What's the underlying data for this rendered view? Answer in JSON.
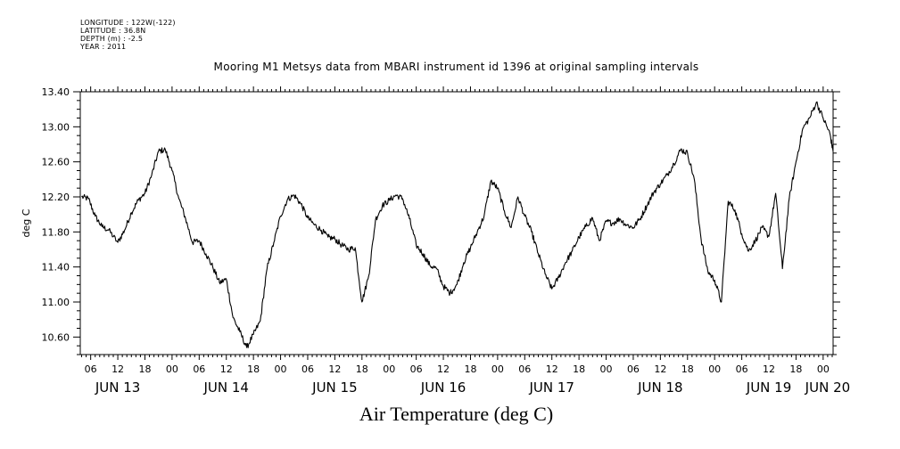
{
  "header": {
    "meta_lines": [
      "LONGITUDE : 122W(-122)",
      "LATITUDE : 36.8N",
      "DEPTH (m) : -2.5",
      "YEAR : 2011"
    ],
    "title": "Mooring M1 Metsys data from MBARI instrument id 1396 at original sampling intervals"
  },
  "footer": {
    "label": "Air Temperature (deg C)"
  },
  "chart_data": {
    "type": "line",
    "title": "Mooring M1 Metsys data from MBARI instrument id 1396 at original sampling intervals",
    "xlabel": "",
    "ylabel": "deg C",
    "x_unit": "hours from JUN 13 00",
    "xlim": [
      3.7,
      170.2
    ],
    "ylim": [
      10.4,
      13.4
    ],
    "y_ticks": [
      10.6,
      11.0,
      11.4,
      11.8,
      12.2,
      12.6,
      13.0,
      13.4
    ],
    "y_tick_labels": [
      "10.60",
      "11.00",
      "11.40",
      "11.80",
      "12.20",
      "12.60",
      "13.00",
      "13.40"
    ],
    "hour_ticks": [
      6,
      12,
      18,
      24,
      30,
      36,
      42,
      48,
      54,
      60,
      66,
      72,
      78,
      84,
      90,
      96,
      102,
      108,
      114,
      120,
      126,
      132,
      138,
      144,
      150,
      156,
      162,
      168
    ],
    "hour_tick_labels": [
      "06",
      "12",
      "18",
      "00",
      "06",
      "12",
      "18",
      "00",
      "06",
      "12",
      "18",
      "00",
      "06",
      "12",
      "18",
      "00",
      "06",
      "12",
      "18",
      "00",
      "06",
      "12",
      "18",
      "00",
      "06",
      "12",
      "18",
      "00"
    ],
    "day_labels": [
      {
        "hour": 12,
        "label": "JUN 13"
      },
      {
        "hour": 36,
        "label": "JUN 14"
      },
      {
        "hour": 60,
        "label": "JUN 15"
      },
      {
        "hour": 84,
        "label": "JUN 16"
      },
      {
        "hour": 108,
        "label": "JUN 17"
      },
      {
        "hour": 132,
        "label": "JUN 18"
      },
      {
        "hour": 156,
        "label": "JUN 19"
      },
      {
        "hour": 169,
        "label": "JUN 20"
      }
    ],
    "grid": false,
    "series": [
      {
        "color": "#000000",
        "x": [
          4.0,
          5.5,
          7.0,
          8.5,
          10.0,
          12.0,
          13.5,
          15.0,
          16.5,
          18.0,
          19.5,
          21.0,
          22.5,
          24.0,
          25.5,
          27.0,
          28.5,
          30.0,
          31.5,
          33.0,
          34.5,
          36.0,
          37.5,
          39.0,
          40.5,
          42.0,
          43.5,
          45.0,
          46.5,
          48.0,
          49.5,
          51.0,
          52.5,
          54.0,
          55.5,
          57.0,
          58.5,
          60.0,
          61.5,
          63.0,
          64.5,
          66.0,
          67.5,
          69.0,
          70.5,
          72.0,
          73.5,
          75.0,
          76.5,
          78.0,
          79.5,
          81.0,
          82.5,
          84.0,
          85.5,
          87.0,
          88.5,
          90.0,
          91.5,
          93.0,
          94.5,
          96.0,
          97.5,
          99.0,
          100.5,
          102.0,
          103.5,
          105.0,
          106.5,
          108.0,
          109.5,
          111.0,
          112.5,
          114.0,
          115.5,
          117.0,
          118.5,
          120.0,
          121.5,
          123.0,
          124.5,
          126.0,
          127.5,
          129.0,
          130.5,
          132.0,
          133.5,
          135.0,
          136.5,
          138.0,
          139.5,
          141.0,
          142.5,
          144.0,
          145.5,
          147.0,
          148.5,
          150.0,
          151.5,
          153.0,
          154.5,
          156.0,
          157.5,
          159.0,
          160.5,
          162.0,
          163.5,
          165.0,
          166.5,
          168.0,
          169.5,
          170.2
        ],
        "y": [
          12.2,
          12.18,
          11.98,
          11.86,
          11.82,
          11.68,
          11.82,
          12.02,
          12.16,
          12.24,
          12.45,
          12.72,
          12.74,
          12.5,
          12.18,
          11.95,
          11.68,
          11.7,
          11.55,
          11.4,
          11.22,
          11.26,
          10.82,
          10.66,
          10.48,
          10.63,
          10.78,
          11.38,
          11.68,
          11.98,
          12.17,
          12.22,
          12.12,
          11.96,
          11.88,
          11.82,
          11.74,
          11.72,
          11.65,
          11.6,
          11.62,
          11.0,
          11.3,
          11.94,
          12.1,
          12.16,
          12.22,
          12.18,
          11.95,
          11.65,
          11.55,
          11.42,
          11.38,
          11.18,
          11.1,
          11.2,
          11.45,
          11.62,
          11.8,
          11.98,
          12.38,
          12.3,
          12.04,
          11.85,
          12.2,
          11.98,
          11.8,
          11.55,
          11.32,
          11.15,
          11.28,
          11.45,
          11.58,
          11.74,
          11.86,
          11.96,
          11.7,
          11.92,
          11.9,
          11.95,
          11.88,
          11.85,
          11.95,
          12.1,
          12.25,
          12.35,
          12.45,
          12.58,
          12.74,
          12.7,
          12.4,
          11.72,
          11.35,
          11.25,
          11.0,
          12.15,
          12.05,
          11.78,
          11.58,
          11.7,
          11.85,
          11.75,
          12.24,
          11.38,
          12.18,
          12.6,
          12.98,
          13.1,
          13.28,
          13.1,
          12.92,
          12.72
        ]
      }
    ]
  }
}
